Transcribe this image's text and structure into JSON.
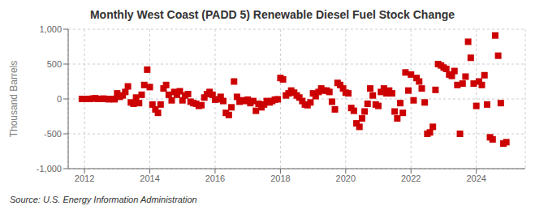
{
  "chart_data": {
    "type": "scatter",
    "title": "Monthly West Coast (PADD 5) Renewable Diesel Fuel Stock Change",
    "y_label": "Thousand Barrels",
    "annotation": "Source: U.S. Energy Information Administration",
    "color": "#cc0000",
    "marker": "square",
    "grid": true,
    "xlim": [
      2011.5,
      2025.5
    ],
    "xticks": [
      2012,
      2014,
      2016,
      2018,
      2020,
      2022,
      2024
    ],
    "ylim": [
      -1000,
      1000
    ],
    "yticks": [
      {
        "value": -1000,
        "label": "-1,000"
      },
      -500,
      0,
      500,
      {
        "value": 1000,
        "label": "1,000"
      }
    ],
    "x": [
      2011.92,
      2012.0,
      2012.08,
      2012.17,
      2012.25,
      2012.33,
      2012.42,
      2012.5,
      2012.58,
      2012.67,
      2012.75,
      2012.83,
      2012.92,
      2013.0,
      2013.08,
      2013.17,
      2013.25,
      2013.33,
      2013.42,
      2013.5,
      2013.58,
      2013.67,
      2013.75,
      2013.83,
      2013.92,
      2014.0,
      2014.08,
      2014.17,
      2014.25,
      2014.33,
      2014.42,
      2014.5,
      2014.58,
      2014.67,
      2014.75,
      2014.83,
      2014.92,
      2015.0,
      2015.08,
      2015.17,
      2015.25,
      2015.33,
      2015.42,
      2015.5,
      2015.58,
      2015.67,
      2015.75,
      2015.83,
      2015.92,
      2016.0,
      2016.08,
      2016.17,
      2016.25,
      2016.33,
      2016.42,
      2016.5,
      2016.58,
      2016.67,
      2016.75,
      2016.83,
      2016.92,
      2017.0,
      2017.08,
      2017.17,
      2017.25,
      2017.33,
      2017.42,
      2017.5,
      2017.58,
      2017.67,
      2017.75,
      2017.83,
      2017.92,
      2018.0,
      2018.08,
      2018.17,
      2018.25,
      2018.33,
      2018.42,
      2018.5,
      2018.58,
      2018.67,
      2018.75,
      2018.83,
      2018.92,
      2019.0,
      2019.08,
      2019.17,
      2019.25,
      2019.33,
      2019.42,
      2019.5,
      2019.58,
      2019.67,
      2019.75,
      2019.83,
      2019.92,
      2020.0,
      2020.08,
      2020.17,
      2020.25,
      2020.33,
      2020.42,
      2020.5,
      2020.58,
      2020.67,
      2020.75,
      2020.83,
      2020.92,
      2021.0,
      2021.08,
      2021.17,
      2021.25,
      2021.33,
      2021.42,
      2021.5,
      2021.58,
      2021.67,
      2021.75,
      2021.83,
      2021.92,
      2022.0,
      2022.08,
      2022.17,
      2022.25,
      2022.33,
      2022.42,
      2022.5,
      2022.58,
      2022.67,
      2022.75,
      2022.83,
      2022.92,
      2023.0,
      2023.08,
      2023.17,
      2023.25,
      2023.33,
      2023.42,
      2023.5,
      2023.58,
      2023.67,
      2023.75,
      2023.83,
      2023.92,
      2024.0,
      2024.08,
      2024.17,
      2024.25,
      2024.33,
      2024.42,
      2024.5,
      2024.58,
      2024.67,
      2024.75,
      2024.83,
      2024.92
    ],
    "values": [
      0,
      0,
      0,
      0,
      5,
      10,
      0,
      0,
      5,
      0,
      -5,
      0,
      -5,
      80,
      30,
      50,
      100,
      180,
      -50,
      -70,
      20,
      -60,
      60,
      200,
      420,
      170,
      -80,
      -150,
      -200,
      -80,
      150,
      200,
      60,
      -20,
      100,
      60,
      110,
      -20,
      50,
      70,
      -40,
      -60,
      -70,
      -100,
      -90,
      20,
      70,
      100,
      60,
      -10,
      -5,
      30,
      -30,
      -200,
      -230,
      -120,
      250,
      30,
      -40,
      -20,
      -30,
      -10,
      -60,
      -30,
      -170,
      -70,
      -120,
      -80,
      -30,
      -50,
      -30,
      -10,
      -5,
      300,
      280,
      50,
      80,
      120,
      90,
      50,
      20,
      -30,
      -80,
      -90,
      -50,
      80,
      40,
      100,
      150,
      120,
      120,
      100,
      -40,
      -150,
      230,
      200,
      150,
      90,
      80,
      -130,
      -170,
      -350,
      -400,
      -280,
      -180,
      -70,
      150,
      50,
      -80,
      -100,
      100,
      150,
      80,
      120,
      80,
      -180,
      -280,
      -60,
      -200,
      380,
      120,
      350,
      -20,
      300,
      250,
      150,
      -50,
      -500,
      -480,
      -400,
      130,
      500,
      480,
      450,
      430,
      350,
      330,
      400,
      200,
      -500,
      220,
      320,
      820,
      590,
      220,
      -100,
      250,
      200,
      340,
      -80,
      -550,
      -580,
      910,
      620,
      -60,
      -640,
      -620
    ]
  }
}
